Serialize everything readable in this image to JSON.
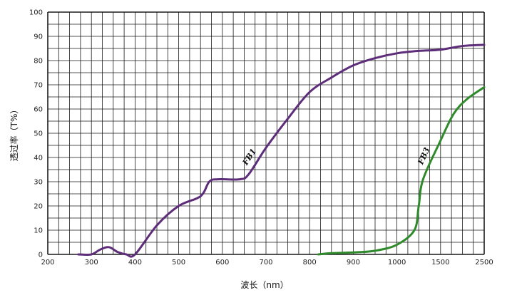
{
  "chart_data": {
    "type": "line",
    "xlabel": "波长（nm）",
    "ylabel": "透过率（T%）",
    "ylim": [
      0,
      100
    ],
    "x_ticks": [
      "200",
      "300",
      "400",
      "500",
      "600",
      "700",
      "800",
      "900",
      "1000",
      "1500",
      "2500"
    ],
    "y_ticks": [
      "0",
      "10",
      "20",
      "30",
      "40",
      "50",
      "60",
      "70",
      "80",
      "90",
      "100"
    ],
    "grid": true,
    "series": [
      {
        "name": "FB1",
        "color": "#5e2d79",
        "x": [
          270,
          300,
          320,
          340,
          360,
          380,
          400,
          450,
          500,
          550,
          570,
          590,
          640,
          660,
          700,
          750,
          800,
          850,
          900,
          950,
          1000,
          1250,
          1500,
          2000,
          2500
        ],
        "y": [
          0,
          0,
          2,
          3,
          1,
          0,
          0,
          12,
          20,
          24,
          30,
          31,
          31,
          33,
          44,
          56,
          67,
          73,
          78,
          81,
          83,
          84,
          84.5,
          86,
          86.5
        ]
      },
      {
        "name": "FB3",
        "color": "#2f8a2c",
        "x": [
          820,
          850,
          900,
          950,
          1000,
          1200,
          1250,
          1300,
          1500,
          1800,
          2100,
          2500
        ],
        "y": [
          0,
          0.5,
          0.8,
          1.5,
          4,
          10,
          20,
          31,
          47,
          58,
          64,
          69
        ]
      }
    ]
  }
}
